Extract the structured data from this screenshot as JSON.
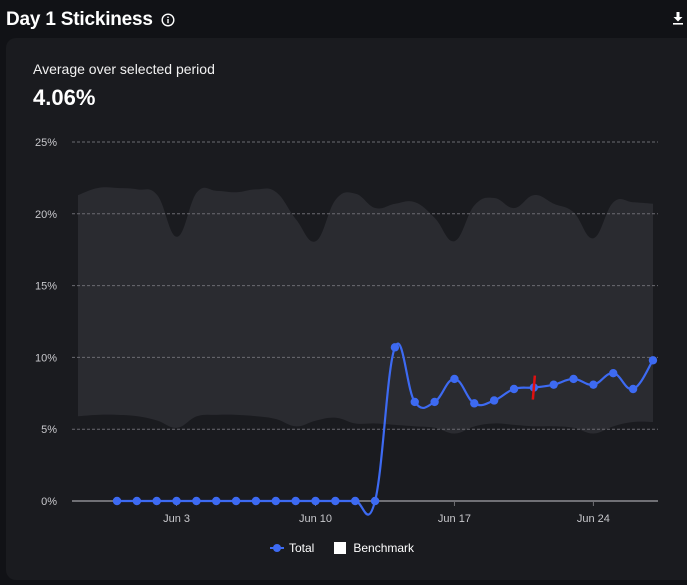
{
  "header": {
    "title": "Day 1 Stickiness",
    "info_icon": "info-circle-icon",
    "download_icon": "download-icon"
  },
  "summary": {
    "label": "Average over selected period",
    "value": "4.06%"
  },
  "legend": {
    "total": "Total",
    "benchmark": "Benchmark"
  },
  "colors": {
    "series_total": "#3d6af2",
    "benchmark_band": "#2a2b30",
    "marker": "#e01010",
    "grid": "#6b6b70",
    "axis": "#6b6b70"
  },
  "chart_data": {
    "type": "line",
    "title": "Day 1 Stickiness",
    "xlabel": "",
    "ylabel": "",
    "ylim": [
      0,
      25
    ],
    "yticks": [
      "0%",
      "5%",
      "10%",
      "15%",
      "20%",
      "25%"
    ],
    "xticks": [
      "Jun 3",
      "Jun 10",
      "Jun 17",
      "Jun 24"
    ],
    "grid": true,
    "legend_position": "bottom",
    "x": [
      "May 31",
      "Jun 1",
      "Jun 2",
      "Jun 3",
      "Jun 4",
      "Jun 5",
      "Jun 6",
      "Jun 7",
      "Jun 8",
      "Jun 9",
      "Jun 10",
      "Jun 11",
      "Jun 12",
      "Jun 13",
      "Jun 14",
      "Jun 15",
      "Jun 16",
      "Jun 17",
      "Jun 18",
      "Jun 19",
      "Jun 20",
      "Jun 21",
      "Jun 22",
      "Jun 23",
      "Jun 24",
      "Jun 25",
      "Jun 26",
      "Jun 27"
    ],
    "series": [
      {
        "name": "Total",
        "values": [
          0,
          0,
          0,
          0,
          0,
          0,
          0,
          0,
          0,
          0,
          0,
          0,
          0,
          0,
          10.7,
          6.9,
          6.9,
          8.5,
          6.8,
          7.0,
          7.8,
          7.9,
          8.1,
          8.5,
          8.1,
          8.9,
          7.8,
          9.8
        ]
      },
      {
        "name": "Benchmark",
        "type": "band",
        "x": [
          "May 29",
          "May 30",
          "May 31",
          "Jun 1",
          "Jun 2",
          "Jun 3",
          "Jun 4",
          "Jun 5",
          "Jun 6",
          "Jun 7",
          "Jun 8",
          "Jun 9",
          "Jun 10",
          "Jun 11",
          "Jun 12",
          "Jun 13",
          "Jun 14",
          "Jun 15",
          "Jun 16",
          "Jun 17",
          "Jun 18",
          "Jun 19",
          "Jun 20",
          "Jun 21",
          "Jun 22",
          "Jun 23",
          "Jun 24",
          "Jun 25",
          "Jun 26",
          "Jun 27"
        ],
        "upper": [
          21.3,
          21.8,
          21.8,
          21.7,
          21.3,
          18.4,
          21.5,
          21.6,
          21.5,
          21.7,
          21.5,
          19.6,
          18.1,
          21.0,
          21.4,
          20.4,
          20.7,
          20.8,
          19.7,
          18.1,
          20.6,
          21.1,
          20.4,
          21.3,
          20.7,
          20.1,
          18.3,
          20.8,
          20.8,
          20.7
        ],
        "lower": [
          5.9,
          6.0,
          6.0,
          5.9,
          5.6,
          5.1,
          5.9,
          6.0,
          6.0,
          5.9,
          5.7,
          5.2,
          5.6,
          5.8,
          5.4,
          5.4,
          5.3,
          5.2,
          5.1,
          4.7,
          5.2,
          5.4,
          5.3,
          5.2,
          5.2,
          5.1,
          4.7,
          5.2,
          5.5,
          5.5
        ]
      }
    ],
    "annotations": [
      {
        "type": "vertical-marker",
        "x": "Jun 21",
        "color": "#e01010"
      }
    ]
  }
}
